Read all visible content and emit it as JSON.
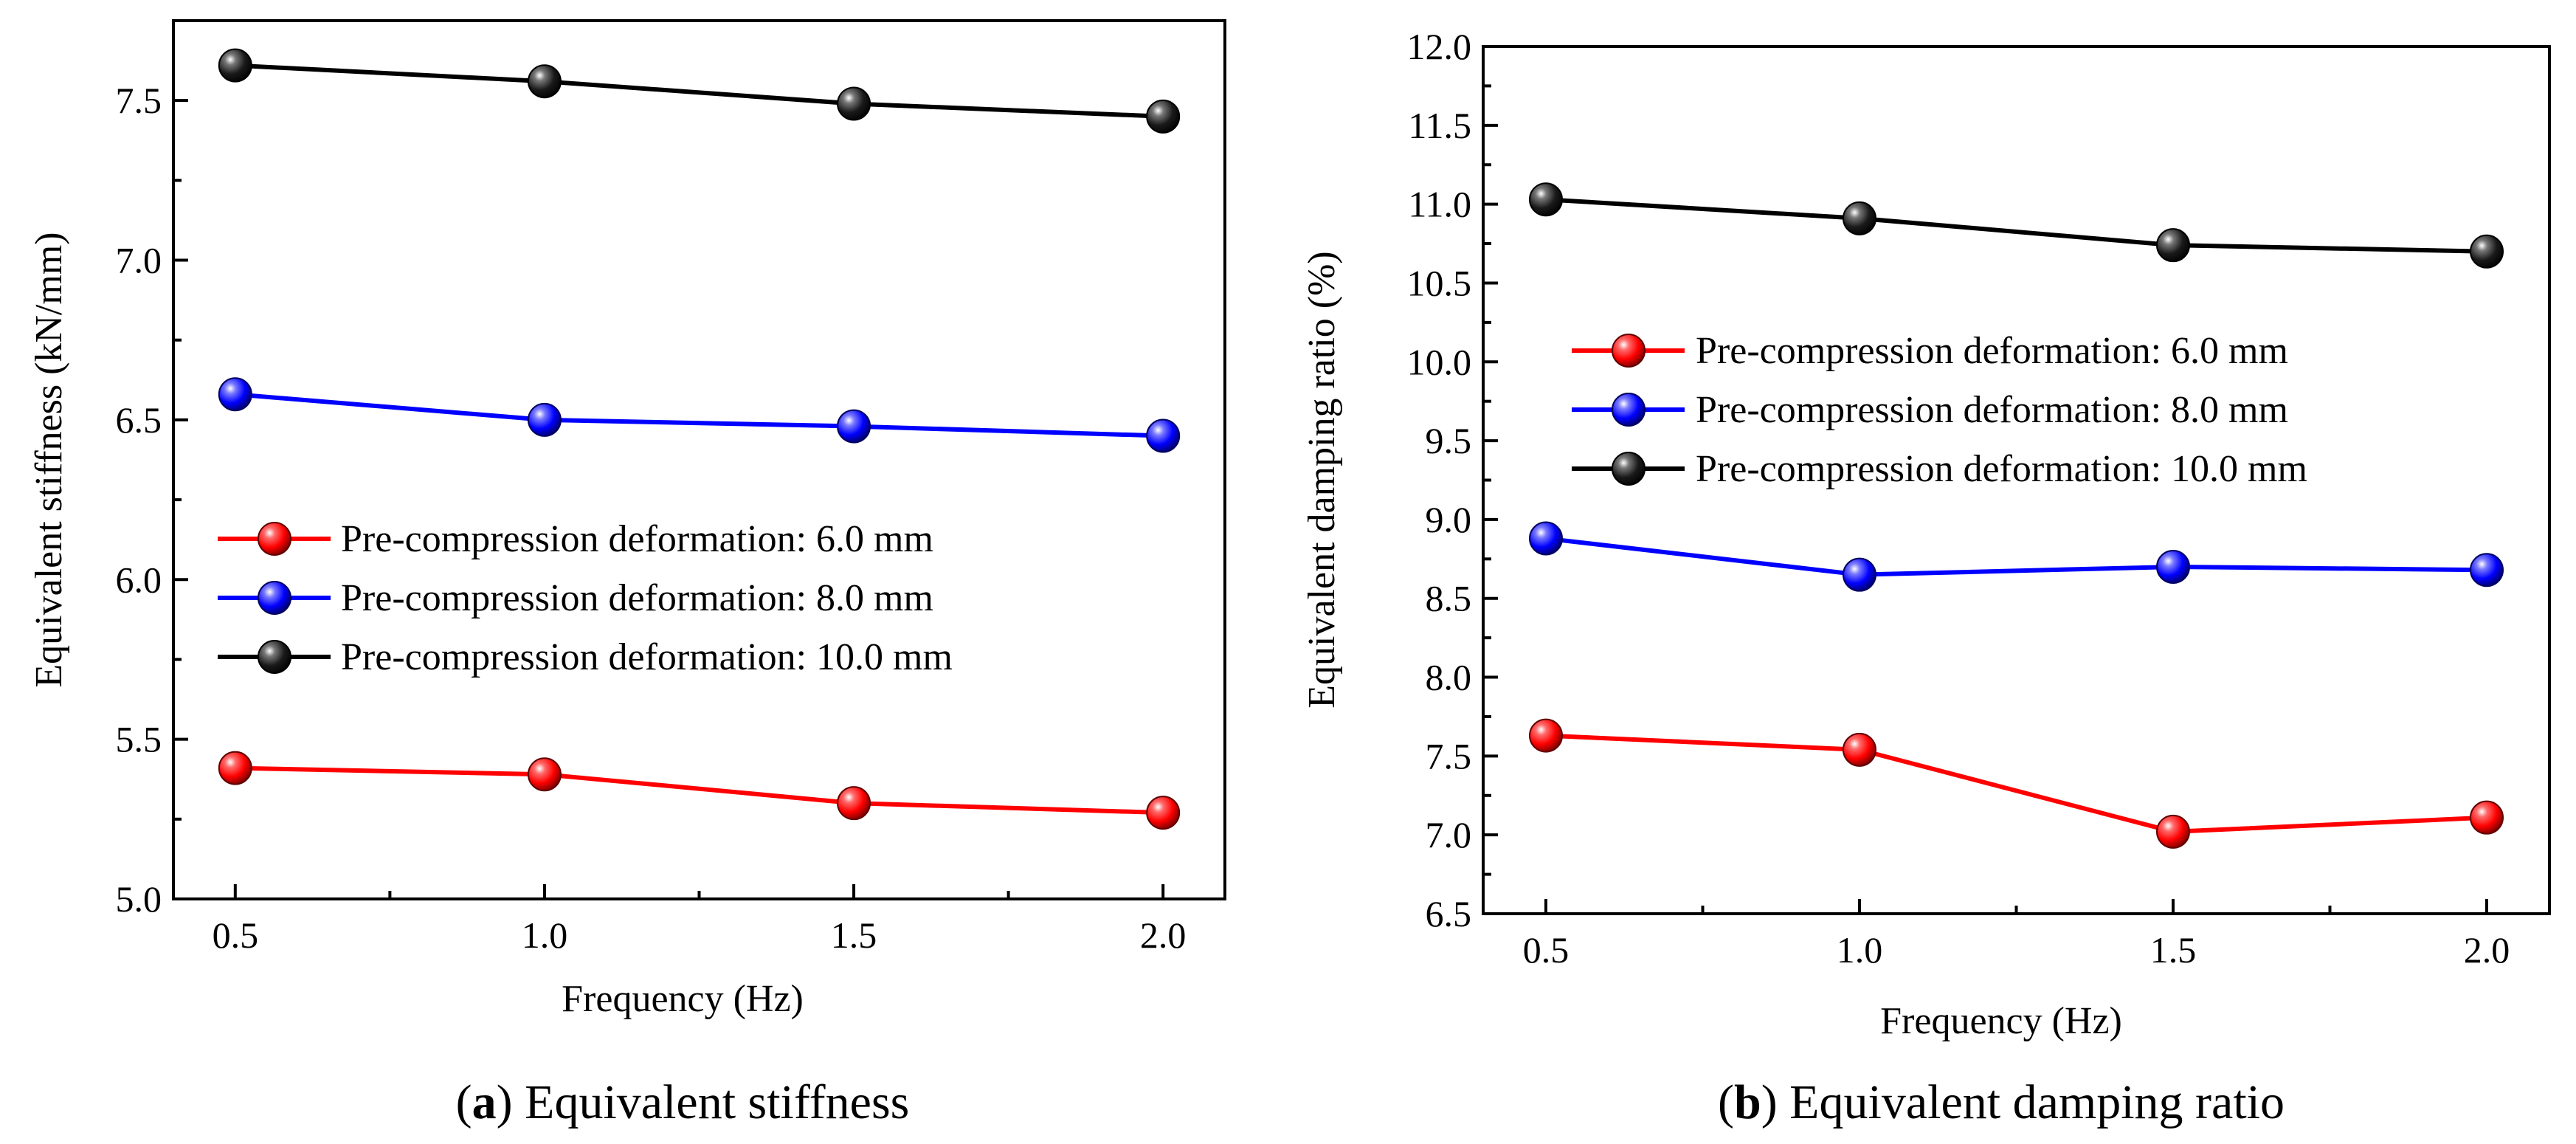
{
  "colors": {
    "red": "#ff0000",
    "blue": "#0000ff",
    "black": "#000000"
  },
  "chart_data": [
    {
      "type": "line",
      "caption_letter": "a",
      "caption_text": "Equivalent stiffness",
      "title": "",
      "xlabel": "Frequency (Hz)",
      "ylabel": "Equivalent stiffness (kN/mm)",
      "x": [
        0.5,
        1.0,
        1.5,
        2.0
      ],
      "x_tick_labels": [
        "0.5",
        "1.0",
        "1.5",
        "2.0"
      ],
      "xlim": [
        0.4,
        2.1
      ],
      "y_tick_labels": [
        "5.0",
        "5.5",
        "6.0",
        "6.5",
        "7.0",
        "7.5"
      ],
      "ylim": [
        5.0,
        7.75
      ],
      "grid": false,
      "legend_position": "center-left",
      "marker": "sphere",
      "series": [
        {
          "name": "Pre-compression deformation: 6.0 mm",
          "color": "#ff0000",
          "values": [
            5.41,
            5.39,
            5.3,
            5.27
          ]
        },
        {
          "name": "Pre-compression deformation: 8.0 mm",
          "color": "#0000ff",
          "values": [
            6.58,
            6.5,
            6.48,
            6.45
          ]
        },
        {
          "name": "Pre-compression deformation: 10.0 mm",
          "color": "#000000",
          "values": [
            7.61,
            7.56,
            7.49,
            7.45
          ]
        }
      ]
    },
    {
      "type": "line",
      "caption_letter": "b",
      "caption_text": "Equivalent damping ratio",
      "title": "",
      "xlabel": "Frequency (Hz)",
      "ylabel": "Equivalent damping ratio (%)",
      "x": [
        0.5,
        1.0,
        1.5,
        2.0
      ],
      "x_tick_labels": [
        "0.5",
        "1.0",
        "1.5",
        "2.0"
      ],
      "xlim": [
        0.4,
        2.1
      ],
      "y_tick_labels": [
        "6.5",
        "7.0",
        "7.5",
        "8.0",
        "8.5",
        "9.0",
        "9.5",
        "10.0",
        "10.5",
        "11.0",
        "11.5",
        "12.0"
      ],
      "ylim": [
        6.5,
        12.0
      ],
      "grid": false,
      "legend_position": "upper-left",
      "marker": "sphere",
      "series": [
        {
          "name": "Pre-compression deformation: 6.0 mm",
          "color": "#ff0000",
          "values": [
            7.63,
            7.54,
            7.02,
            7.11
          ]
        },
        {
          "name": "Pre-compression deformation: 8.0 mm",
          "color": "#0000ff",
          "values": [
            8.88,
            8.65,
            8.7,
            8.68
          ]
        },
        {
          "name": "Pre-compression deformation: 10.0 mm",
          "color": "#000000",
          "values": [
            11.03,
            10.91,
            10.74,
            10.7
          ]
        }
      ]
    }
  ]
}
